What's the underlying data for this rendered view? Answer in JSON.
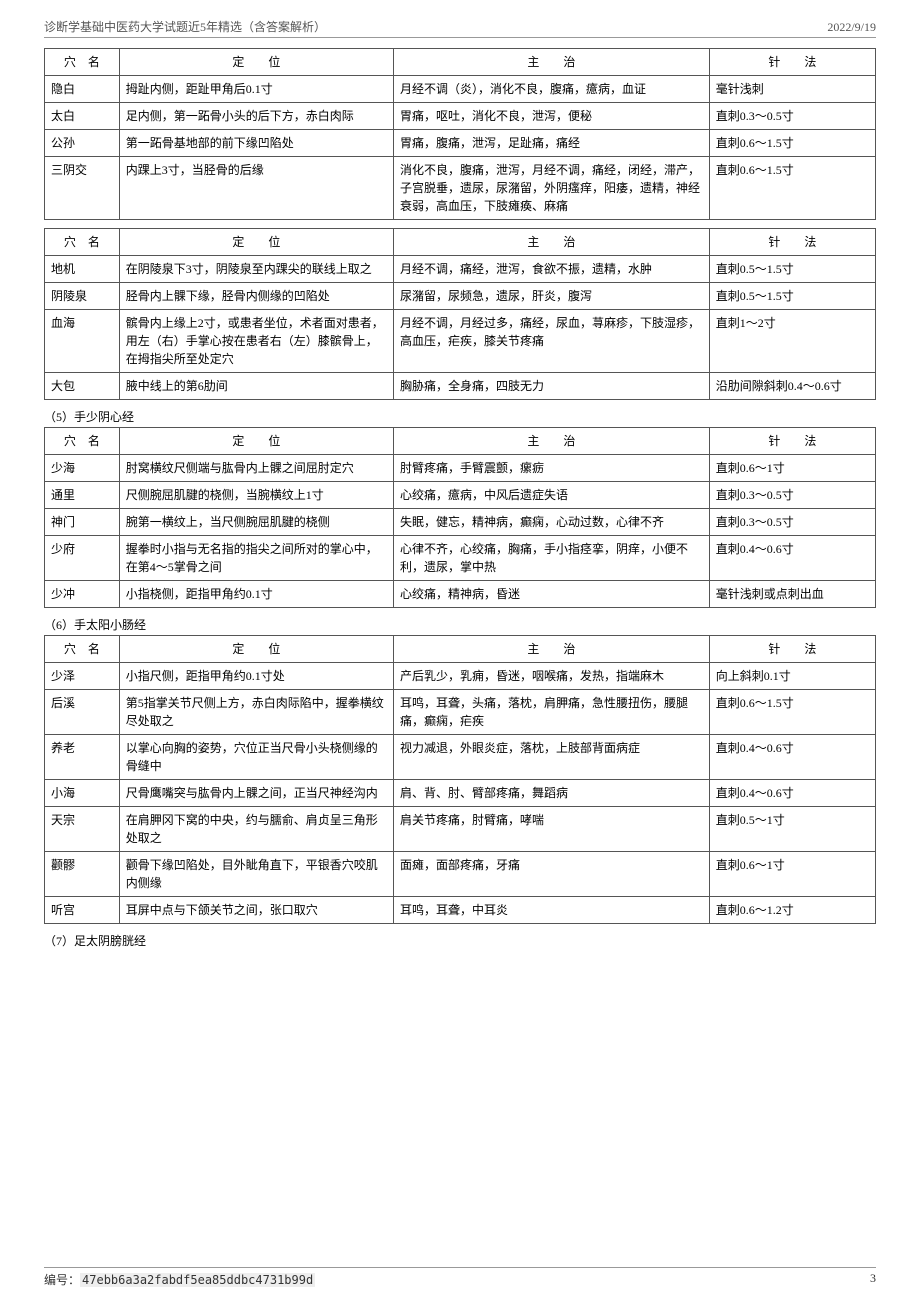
{
  "header": {
    "title": "诊断学基础中医药大学试题近5年精选（含答案解析）",
    "date": "2022/9/19"
  },
  "columns": {
    "name": "穴　名",
    "pos": "定　　位",
    "treat": "主　　治",
    "method": "针　　法"
  },
  "tableA": {
    "rows": [
      {
        "name": "隐白",
        "pos": "拇趾内侧，距趾甲角后0.1寸",
        "treat": "月经不调（炎），消化不良，腹痛，癔病，血证",
        "method": "毫针浅刺"
      },
      {
        "name": "太白",
        "pos": "足内侧，第一跖骨小头的后下方，赤白肉际",
        "treat": "胃痛，呕吐，消化不良，泄泻，便秘",
        "method": "直刺0.3～0.5寸"
      },
      {
        "name": "公孙",
        "pos": "第一跖骨基地部的前下缘凹陷处",
        "treat": "胃痛，腹痛，泄泻，足趾痛，痛经",
        "method": "直刺0.6～1.5寸"
      },
      {
        "name": "三阴交",
        "pos": "内踝上3寸，当胫骨的后缘",
        "treat": "消化不良，腹痛，泄泻，月经不调，痛经，闭经，滞产，子宫脱垂，遗尿，尿潴留，外阴瘙痒，阳痿，遗精，神经衰弱，高血压，下肢瘫痪、麻痛",
        "method": "直刺0.6～1.5寸"
      }
    ]
  },
  "tableB": {
    "rows": [
      {
        "name": "地机",
        "pos": "在阴陵泉下3寸，阴陵泉至内踝尖的联线上取之",
        "treat": "月经不调，痛经，泄泻，食欲不振，遗精，水肿",
        "method": "直刺0.5～1.5寸"
      },
      {
        "name": "阴陵泉",
        "pos": "胫骨内上髁下缘，胫骨内侧缘的凹陷处",
        "treat": "尿潴留，尿频急，遗尿，肝炎，腹泻",
        "method": "直刺0.5～1.5寸"
      },
      {
        "name": "血海",
        "pos": "髌骨内上缘上2寸，或患者坐位，术者面对患者，用左（右）手掌心按在患者右（左）膝髌骨上，在拇指尖所至处定穴",
        "treat": "月经不调，月经过多，痛经，尿血，荨麻疹，下肢湿疹，高血压，疟疾，膝关节疼痛",
        "method": "直刺1～2寸"
      },
      {
        "name": "大包",
        "pos": "腋中线上的第6肋间",
        "treat": "胸胁痛，全身痛，四肢无力",
        "method": "沿肋间隙斜刺0.4～0.6寸"
      }
    ]
  },
  "section5": {
    "label": "（5）手少阴心经"
  },
  "tableC": {
    "rows": [
      {
        "name": "少海",
        "pos": "肘窝横纹尺侧端与肱骨内上髁之间屈肘定穴",
        "treat": "肘臂疼痛，手臂震颤，瘰疬",
        "method": "直刺0.6～1寸"
      },
      {
        "name": "通里",
        "pos": "尺侧腕屈肌腱的桡侧，当腕横纹上1寸",
        "treat": "心绞痛，癔病，中风后遗症失语",
        "method": "直刺0.3～0.5寸"
      },
      {
        "name": "神门",
        "pos": "腕第一横纹上，当尺侧腕屈肌腱的桡侧",
        "treat": "失眠，健忘，精神病，癫痫，心动过数，心律不齐",
        "method": "直刺0.3～0.5寸"
      },
      {
        "name": "少府",
        "pos": "握拳时小指与无名指的指尖之间所对的掌心中，在第4～5掌骨之间",
        "treat": "心律不齐，心绞痛，胸痛，手小指痉挛，阴痒，小便不利，遗尿，掌中热",
        "method": "直刺0.4～0.6寸"
      },
      {
        "name": "少冲",
        "pos": "小指桡侧，距指甲角约0.1寸",
        "treat": "心绞痛，精神病，昏迷",
        "method": "毫针浅刺或点刺出血"
      }
    ]
  },
  "section6": {
    "label": "（6）手太阳小肠经"
  },
  "tableD": {
    "rows": [
      {
        "name": "少泽",
        "pos": "小指尺侧，距指甲角约0.1寸处",
        "treat": "产后乳少，乳痈，昏迷，咽喉痛，发热，指端麻木",
        "method": "向上斜刺0.1寸"
      },
      {
        "name": "后溪",
        "pos": "第5指掌关节尺侧上方，赤白肉际陷中，握拳横纹尽处取之",
        "treat": "耳鸣，耳聋，头痛，落枕，肩胛痛，急性腰扭伤，腰腿痛，癫痫，疟疾",
        "method": "直刺0.6～1.5寸"
      },
      {
        "name": "养老",
        "pos": "以掌心向胸的姿势，穴位正当尺骨小头桡侧缘的骨缝中",
        "treat": "视力减退，外眼炎症，落枕，上肢部背面病症",
        "method": "直刺0.4～0.6寸"
      },
      {
        "name": "小海",
        "pos": "尺骨鹰嘴突与肱骨内上髁之间，正当尺神经沟内",
        "treat": "肩、背、肘、臂部疼痛，舞蹈病",
        "method": "直刺0.4～0.6寸"
      },
      {
        "name": "天宗",
        "pos": "在肩胛冈下窝的中央，约与臑俞、肩贞呈三角形处取之",
        "treat": "肩关节疼痛，肘臂痛，哮喘",
        "method": "直刺0.5～1寸"
      },
      {
        "name": "颧髎",
        "pos": "颧骨下缘凹陷处，目外眦角直下，平银香穴咬肌内侧缘",
        "treat": "面瘫，面部疼痛，牙痛",
        "method": "直刺0.6～1寸"
      },
      {
        "name": "听宫",
        "pos": "耳屏中点与下颌关节之间，张口取穴",
        "treat": "耳鸣，耳聋，中耳炎",
        "method": "直刺0.6～1.2寸"
      }
    ]
  },
  "section7": {
    "label": "（7）足太阴膀胱经"
  },
  "footer": {
    "label": "编号：",
    "hash": "47ebb6a3a2fabdf5ea85ddbc4731b99d",
    "page": "3"
  }
}
